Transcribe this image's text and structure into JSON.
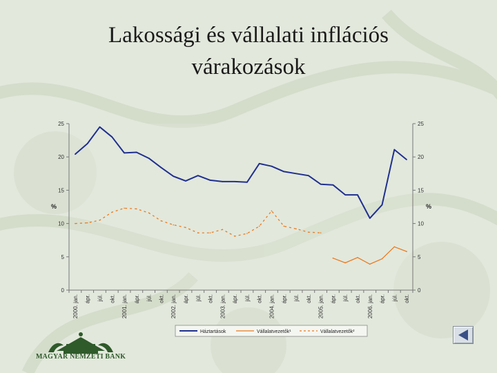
{
  "slide": {
    "title_line1": "Lakossági és vállalati inflációs",
    "title_line2": "várakozások"
  },
  "logo": {
    "text": "MAGYAR NEMZETI BANK",
    "icon": "bank-emblem-icon"
  },
  "nav": {
    "back_icon": "triangle-left-icon"
  },
  "colors": {
    "background": "#e2e8dc",
    "hazt": "#1f2f8f",
    "orange": "#ea7a1e",
    "gridline": "#8a8a8a"
  },
  "chart_data": {
    "type": "line",
    "ylabel_left": "%",
    "ylabel_right": "%",
    "ylim": [
      0,
      25
    ],
    "yticks": [
      0,
      5,
      10,
      15,
      20,
      25
    ],
    "categories": [
      "2000. jan.",
      "ápr.",
      "júl.",
      "okt.",
      "2001. jan.",
      "ápr.",
      "júl.",
      "okt.",
      "2002. jan.",
      "ápr.",
      "júl.",
      "okt.",
      "2003. jan.",
      "ápr.",
      "júl.",
      "okt.",
      "2004. jan.",
      "ápr.",
      "júl.",
      "okt.",
      "2005. jan.",
      "ápr.",
      "júl.",
      "okt.",
      "2006. jan.",
      "ápr.",
      "júl.",
      "okt."
    ],
    "grid": false,
    "legend_position": "bottom",
    "series": [
      {
        "name": "Háztartások",
        "style": "solid",
        "color": "#1f2f8f",
        "values": [
          20.4,
          22.0,
          24.5,
          23.0,
          20.6,
          20.7,
          19.8,
          18.4,
          17.1,
          16.4,
          17.2,
          16.5,
          16.3,
          16.3,
          16.2,
          19.0,
          18.6,
          17.8,
          17.5,
          17.2,
          15.9,
          15.8,
          14.3,
          14.3,
          10.8,
          12.8,
          21.1,
          19.6
        ]
      },
      {
        "name": "Vállalatvezetők¹",
        "style": "solid",
        "color": "#ea7a1e",
        "values": [
          null,
          null,
          null,
          null,
          null,
          null,
          null,
          null,
          null,
          null,
          null,
          null,
          null,
          null,
          null,
          null,
          null,
          null,
          null,
          null,
          null,
          4.8,
          4.1,
          4.9,
          3.9,
          4.7,
          6.5,
          5.8
        ]
      },
      {
        "name": "Vállalatvezetők²",
        "style": "dashed",
        "color": "#ea7a1e",
        "values": [
          10.0,
          10.1,
          10.5,
          11.7,
          12.3,
          12.2,
          11.6,
          10.4,
          9.8,
          9.4,
          8.6,
          8.6,
          9.1,
          8.1,
          8.5,
          9.6,
          11.9,
          9.6,
          9.2,
          8.7,
          8.6,
          null,
          null,
          null,
          null,
          null,
          null,
          null
        ]
      }
    ]
  }
}
